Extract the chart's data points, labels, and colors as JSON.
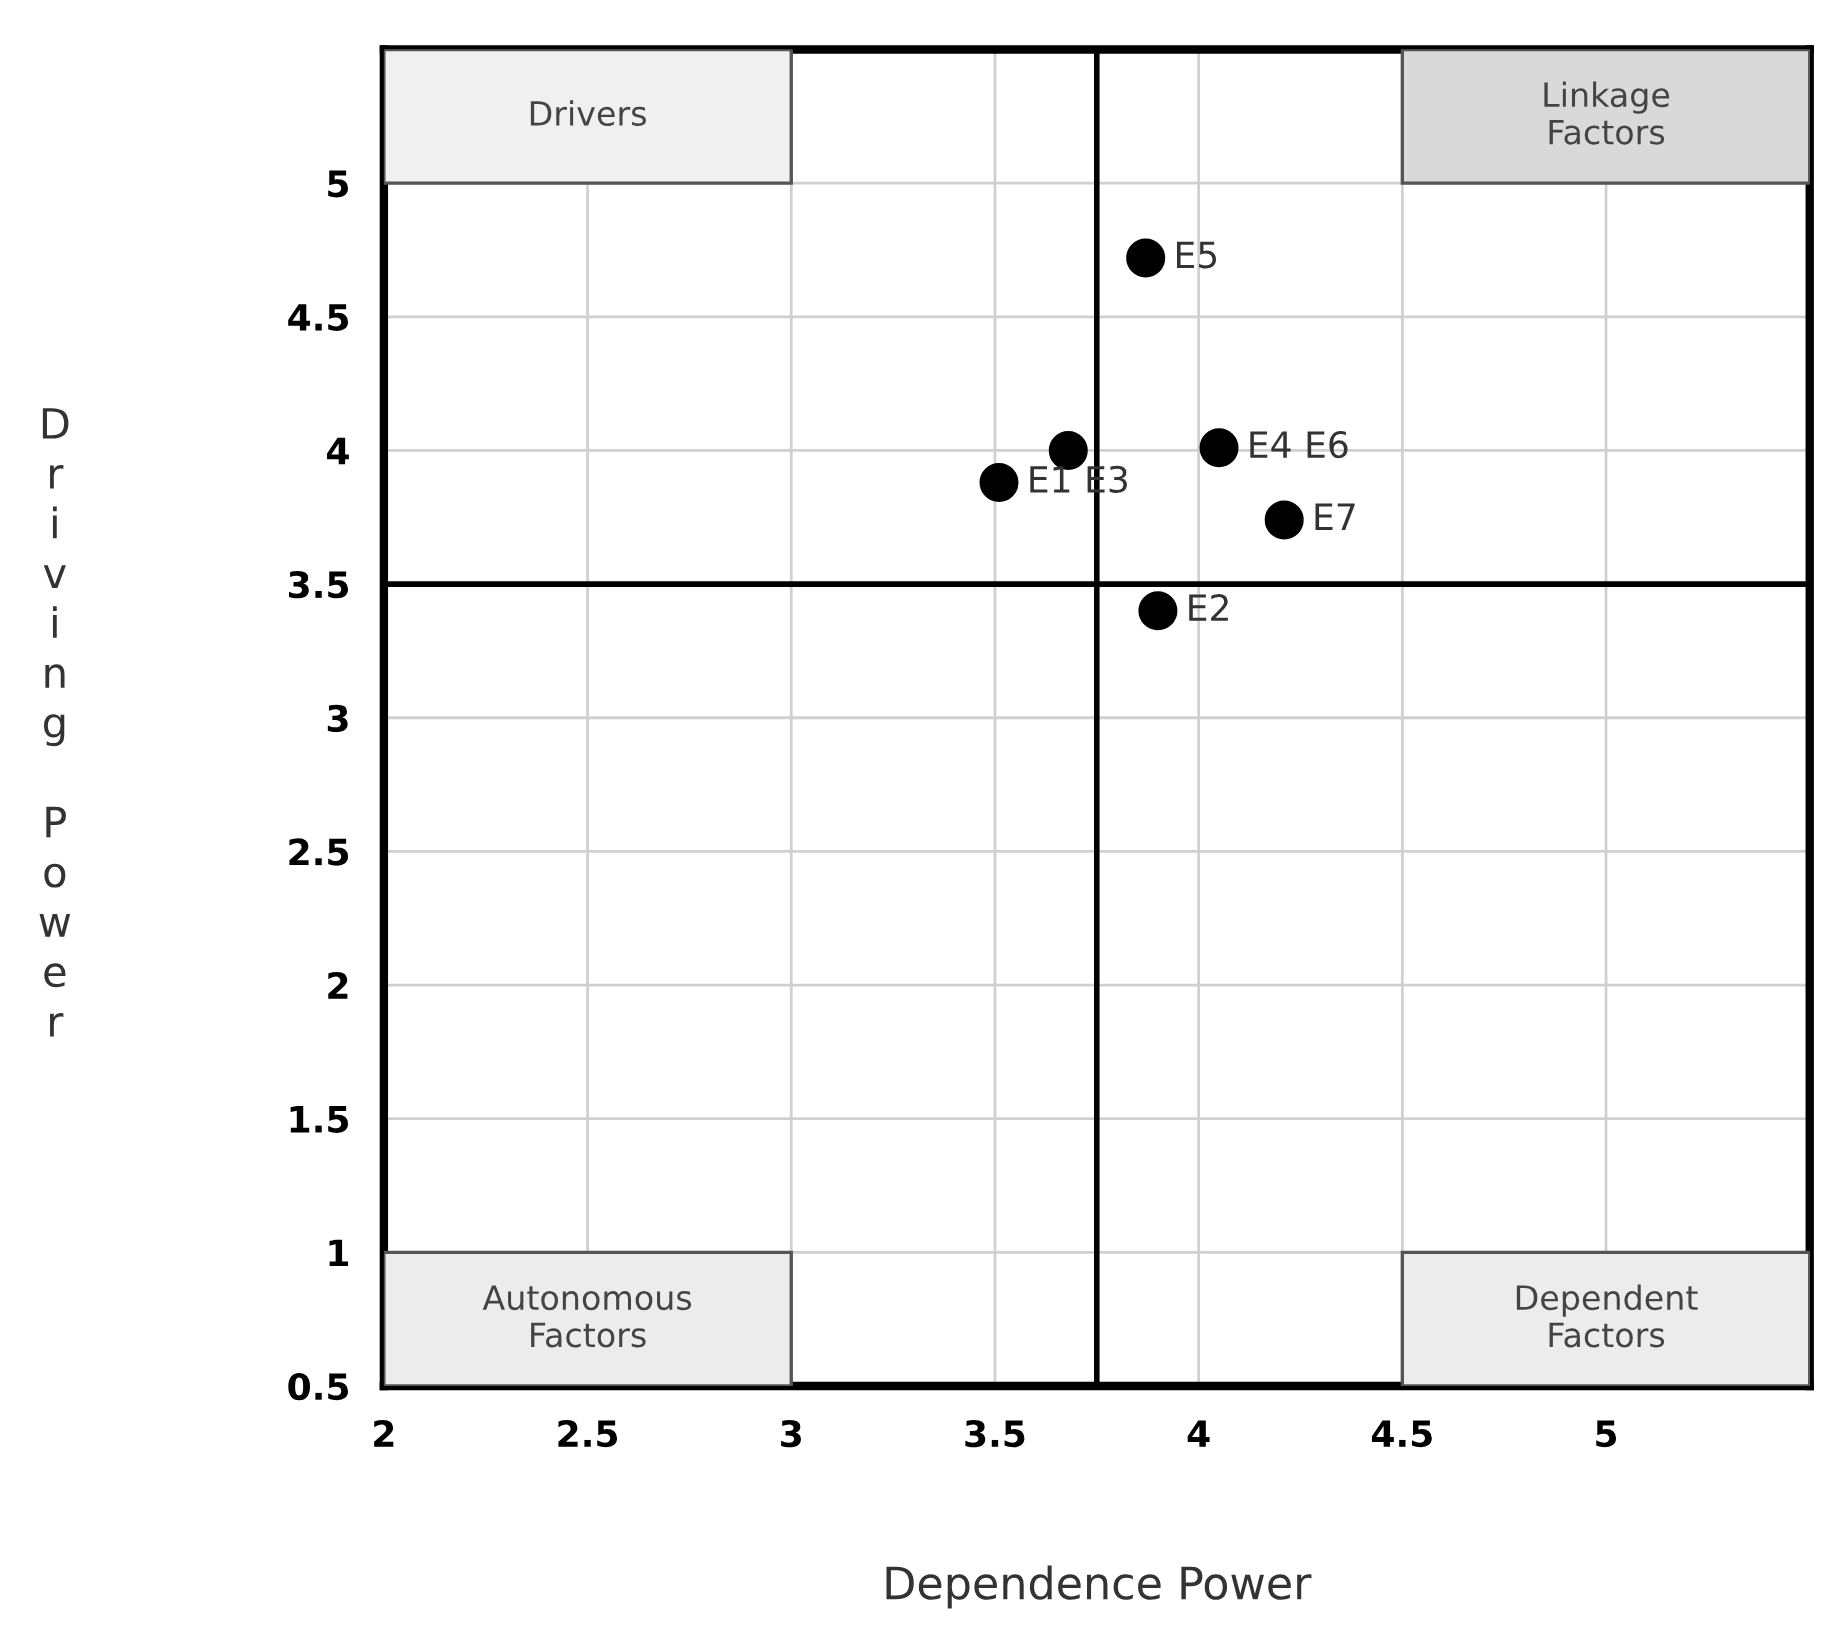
{
  "chart_data": {
    "type": "scatter",
    "xlabel": "Dependence Power",
    "ylabel": "Driving Power",
    "series": [
      {
        "color": "#000000",
        "x": [
          3.51,
          3.9,
          3.68,
          4.05,
          3.87,
          4.21
        ],
        "values": [
          3.88,
          3.4,
          4.0,
          4.01,
          4.72,
          3.74
        ]
      }
    ],
    "xlim": [
      2,
      5.5
    ],
    "xticks": [
      2,
      2.5,
      3,
      3.5,
      4,
      4.5,
      5
    ],
    "ylim": [
      0.5,
      5.5
    ],
    "yticks": [
      0.5,
      1,
      1.5,
      2,
      2.5,
      3,
      3.5,
      4,
      4.5,
      5
    ],
    "grid": true,
    "marker": "circle",
    "ref_lines": [
      {
        "axis": "y",
        "value": 3.5,
        "color": "#000000"
      },
      {
        "axis": "x",
        "value": 3.75,
        "color": "#000000"
      }
    ],
    "annotations": [
      "Drivers",
      "Linkage\nFactors",
      "Autonomous\nFactors",
      "Dependent\nFactors",
      {
        "text": "E1 E3",
        "x": 3.51,
        "y": 3.88
      },
      {
        "text": "E2",
        "x": 3.9,
        "y": 3.4
      },
      {
        "text": "E4 E6",
        "x": 4.05,
        "y": 4.01
      },
      {
        "text": "E5",
        "x": 3.87,
        "y": 4.72
      },
      {
        "text": "E7",
        "x": 4.21,
        "y": 3.74
      }
    ]
  }
}
